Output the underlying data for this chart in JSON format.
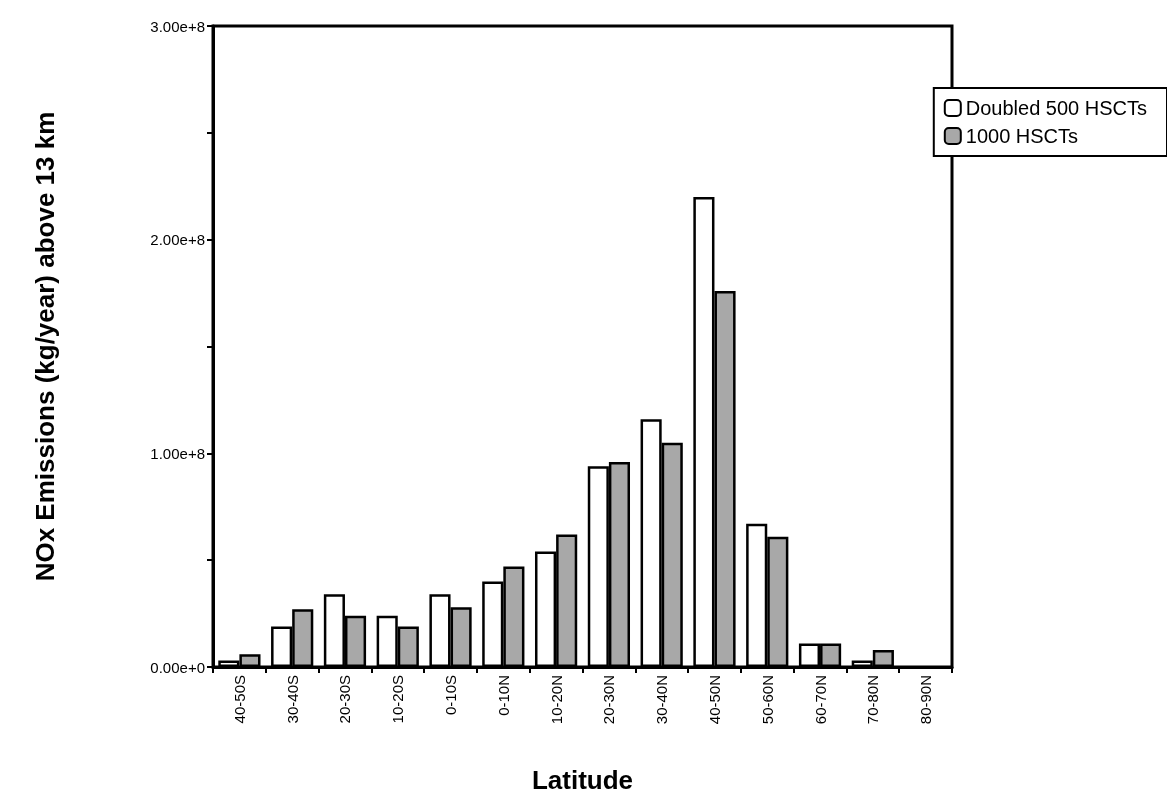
{
  "chart_data": {
    "type": "bar",
    "xlabel": "Latitude",
    "ylabel": "NOx Emissions (kg/year) above 13 km",
    "categories": [
      "40-50S",
      "30-40S",
      "20-30S",
      "10-20S",
      "0-10S",
      "0-10N",
      "10-20N",
      "20-30N",
      "30-40N",
      "40-50N",
      "50-60N",
      "60-70N",
      "70-80N",
      "80-90N"
    ],
    "series": [
      {
        "name": "Doubled 500 HSCTs",
        "color": "#ffffff",
        "values": [
          3000000,
          19000000,
          34000000,
          24000000,
          34000000,
          40000000,
          54000000,
          94000000,
          116000000,
          220000000,
          67000000,
          11000000,
          3000000,
          0
        ]
      },
      {
        "name": "1000 HSCTs",
        "color": "#a8a8a8",
        "values": [
          6000000,
          27000000,
          24000000,
          19000000,
          28000000,
          47000000,
          62000000,
          96000000,
          105000000,
          176000000,
          61000000,
          11000000,
          8000000,
          0
        ]
      }
    ],
    "ylim": [
      0,
      300000000
    ],
    "yticks": [
      {
        "value": 0,
        "label": "0.00e+0"
      },
      {
        "value": 50000000,
        "label": null
      },
      {
        "value": 100000000,
        "label": "1.00e+8"
      },
      {
        "value": 150000000,
        "label": null
      },
      {
        "value": 200000000,
        "label": "2.00e+8"
      },
      {
        "value": 250000000,
        "label": null
      },
      {
        "value": 300000000,
        "label": "3.00e+8"
      }
    ],
    "legend": "top right",
    "grid": false
  }
}
